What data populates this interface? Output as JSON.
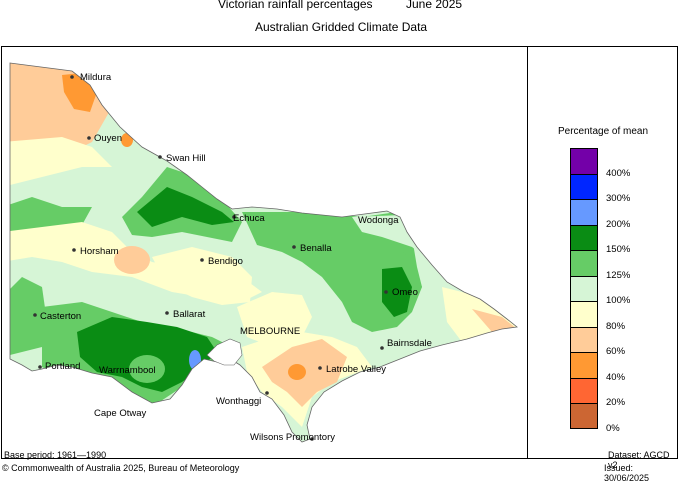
{
  "header": {
    "title": "Victorian rainfall percentages",
    "period": "June 2025",
    "subtitle": "Australian Gridded Climate Data"
  },
  "legend": {
    "title": "Percentage of mean",
    "bins": [
      {
        "label": "400%",
        "color": "#7300a8"
      },
      {
        "label": "300%",
        "color": "#0026ff"
      },
      {
        "label": "200%",
        "color": "#6699ff"
      },
      {
        "label": "150%",
        "color": "#0a8c14"
      },
      {
        "label": "125%",
        "color": "#66cc66"
      },
      {
        "label": "100%",
        "color": "#d6f5d6"
      },
      {
        "label": "80%",
        "color": "#ffffcc"
      },
      {
        "label": "60%",
        "color": "#ffcc99"
      },
      {
        "label": "40%",
        "color": "#ff9933"
      },
      {
        "label": "20%",
        "color": "#ff6633"
      },
      {
        "label": "0%",
        "color": "#cc6633"
      }
    ]
  },
  "places": {
    "mildura": "Mildura",
    "ouyen": "Ouyen",
    "swan_hill": "Swan Hill",
    "echuca": "Echuca",
    "wodonga": "Wodonga",
    "horsham": "Horsham",
    "bendigo": "Bendigo",
    "benalla": "Benalla",
    "omeo": "Omeo",
    "casterton": "Casterton",
    "ballarat": "Ballarat",
    "melbourne": "MELBOURNE",
    "bairnsdale": "Bairnsdale",
    "portland": "Portland",
    "warrnambool": "Warrnambool",
    "latrobe_valley": "Latrobe Valley",
    "wonthaggi": "Wonthaggi",
    "cape_otway": "Cape Otway",
    "wilsons_promontory": "Wilsons Promontory"
  },
  "footer": {
    "base_period": "Base period: 1961—1990",
    "dataset": "Dataset: AGCD v2",
    "copyright": "© Commonwealth of Australia 2025, Bureau of Meteorology",
    "issued": "Issued: 30/06/2025"
  }
}
